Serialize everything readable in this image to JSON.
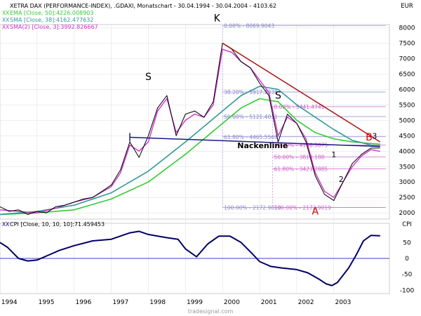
{
  "header": {
    "main_title": "XETRA DAX (PERFORMANCE-INDEX), .GDAXI, Monatschart - 30.04.1994 - 30.04.2004 - 4103.62",
    "legend_ema": "EMA [Close, 50]:4226.008903",
    "legend_sma38": "SMA [Close, 38]:4162.477632",
    "legend_sma2": "SMA(2) [Close, 3]:3992.826667",
    "currency": "EUR",
    "cpi_title": "CPI [Close, 10, 10, 10]:71.459453",
    "cpi_label": "CPI",
    "footer": "tradesignal.com"
  },
  "colors": {
    "price": "#000000",
    "ema": "#33cc33",
    "sma38": "#339999",
    "sma2": "#cc33cc",
    "neckline": "#1a1a8a",
    "trendline": "#aa1111",
    "fib_main": "#8888cc",
    "fib_secondary": "#cc66cc",
    "cpi": "#000066",
    "zero_line": "#0000aa",
    "grid": "#dddddd",
    "label_red": "#cc0000"
  },
  "chart_data": {
    "type": "line",
    "title": "XETRA DAX (PERFORMANCE-INDEX), .GDAXI, Monatschart - 30.04.1994 - 30.04.2004 - 4103.62",
    "ylabel": "EUR",
    "x_tick_labels": [
      "1994",
      "1995",
      "1996",
      "1997",
      "1998",
      "1999",
      "2000",
      "2001",
      "2002",
      "2003"
    ],
    "y_ticks": [
      2000,
      2500,
      3000,
      3500,
      4000,
      4500,
      5000,
      5500,
      6000,
      6500,
      7000,
      7500,
      8000
    ],
    "ylim": [
      1800,
      8100
    ],
    "x_range": [
      1994.0,
      2004.5
    ],
    "series": [
      {
        "name": "XETRA DAX",
        "points": [
          [
            1994.0,
            2200
          ],
          [
            1994.25,
            2050
          ],
          [
            1994.5,
            2100
          ],
          [
            1994.75,
            1950
          ],
          [
            1995.0,
            2050
          ],
          [
            1995.25,
            2000
          ],
          [
            1995.5,
            2200
          ],
          [
            1995.75,
            2250
          ],
          [
            1996.0,
            2350
          ],
          [
            1996.25,
            2450
          ],
          [
            1996.5,
            2500
          ],
          [
            1996.75,
            2700
          ],
          [
            1997.0,
            2900
          ],
          [
            1997.25,
            3400
          ],
          [
            1997.5,
            4300
          ],
          [
            1997.75,
            3800
          ],
          [
            1998.0,
            4500
          ],
          [
            1998.25,
            5400
          ],
          [
            1998.5,
            5800
          ],
          [
            1998.75,
            4500
          ],
          [
            1999.0,
            5200
          ],
          [
            1999.25,
            5300
          ],
          [
            1999.5,
            5100
          ],
          [
            1999.75,
            5600
          ],
          [
            2000.0,
            7500
          ],
          [
            2000.25,
            7300
          ],
          [
            2000.5,
            6900
          ],
          [
            2000.75,
            6700
          ],
          [
            2001.0,
            6200
          ],
          [
            2001.25,
            5800
          ],
          [
            2001.5,
            4300
          ],
          [
            2001.75,
            5200
          ],
          [
            2002.0,
            4900
          ],
          [
            2002.25,
            4300
          ],
          [
            2002.5,
            3200
          ],
          [
            2002.75,
            2600
          ],
          [
            2003.0,
            2400
          ],
          [
            2003.25,
            3000
          ],
          [
            2003.5,
            3600
          ],
          [
            2003.75,
            3900
          ],
          [
            2004.0,
            4100
          ],
          [
            2004.25,
            4103
          ]
        ]
      },
      {
        "name": "EMA [Close, 50]",
        "points": [
          [
            1994.0,
            1950
          ],
          [
            1995.0,
            2000
          ],
          [
            1996.0,
            2100
          ],
          [
            1997.0,
            2450
          ],
          [
            1998.0,
            3000
          ],
          [
            1999.0,
            3900
          ],
          [
            2000.0,
            4900
          ],
          [
            2000.5,
            5400
          ],
          [
            2001.0,
            5700
          ],
          [
            2001.5,
            5600
          ],
          [
            2002.0,
            5000
          ],
          [
            2002.5,
            4600
          ],
          [
            2003.0,
            4400
          ],
          [
            2003.5,
            4300
          ],
          [
            2004.0,
            4250
          ],
          [
            2004.25,
            4226
          ]
        ]
      },
      {
        "name": "SMA [Close, 38]",
        "points": [
          [
            1994.0,
            1950
          ],
          [
            1995.0,
            2050
          ],
          [
            1996.0,
            2250
          ],
          [
            1997.0,
            2650
          ],
          [
            1998.0,
            3350
          ],
          [
            1999.0,
            4300
          ],
          [
            2000.0,
            5300
          ],
          [
            2000.5,
            5800
          ],
          [
            2001.0,
            6100
          ],
          [
            2001.5,
            6000
          ],
          [
            2002.0,
            5500
          ],
          [
            2002.5,
            5100
          ],
          [
            2003.0,
            4700
          ],
          [
            2003.5,
            4350
          ],
          [
            2004.0,
            4200
          ],
          [
            2004.25,
            4162
          ]
        ]
      },
      {
        "name": "SMA(2) [Close, 3]",
        "points": [
          [
            1994.0,
            2100
          ],
          [
            1994.5,
            2050
          ],
          [
            1995.0,
            2000
          ],
          [
            1995.5,
            2150
          ],
          [
            1996.0,
            2350
          ],
          [
            1996.5,
            2500
          ],
          [
            1997.0,
            2850
          ],
          [
            1997.25,
            3300
          ],
          [
            1997.5,
            4200
          ],
          [
            1997.75,
            4000
          ],
          [
            1998.0,
            4300
          ],
          [
            1998.25,
            5300
          ],
          [
            1998.5,
            5700
          ],
          [
            1998.75,
            4600
          ],
          [
            1999.0,
            5000
          ],
          [
            1999.25,
            5200
          ],
          [
            1999.5,
            5100
          ],
          [
            1999.75,
            5500
          ],
          [
            2000.0,
            7300
          ],
          [
            2000.25,
            7200
          ],
          [
            2000.5,
            6900
          ],
          [
            2000.75,
            6700
          ],
          [
            2001.0,
            6300
          ],
          [
            2001.25,
            5900
          ],
          [
            2001.5,
            4500
          ],
          [
            2001.75,
            5100
          ],
          [
            2002.0,
            4900
          ],
          [
            2002.25,
            4400
          ],
          [
            2002.5,
            3300
          ],
          [
            2002.75,
            2700
          ],
          [
            2003.0,
            2500
          ],
          [
            2003.25,
            3000
          ],
          [
            2003.5,
            3500
          ],
          [
            2003.75,
            3850
          ],
          [
            2004.0,
            4050
          ],
          [
            2004.25,
            3993
          ]
        ]
      }
    ],
    "neckline": [
      [
        1997.5,
        4450
      ],
      [
        2004.25,
        4150
      ]
    ],
    "trendline": [
      [
        2000.0,
        7500
      ],
      [
        2004.25,
        4300
      ]
    ],
    "fib_left": {
      "x_start": 2000.0,
      "x_end": 2004.4,
      "levels": [
        {
          "label": "0.00% - 8069.9043",
          "value": 8070
        },
        {
          "label": "38.20% - 5917.2338",
          "value": 5917
        },
        {
          "label": "50.00% - 5121.4031",
          "value": 5121
        },
        {
          "label": "61.80% - 4465.5569",
          "value": 4466
        },
        {
          "label": "100.00% - 2172.9019",
          "value": 2173
        }
      ]
    },
    "fib_right": {
      "x_start": 2001.35,
      "x_end": 2004.4,
      "levels": [
        {
          "label": "0.00% - 5441.4741",
          "value": 5441
        },
        {
          "label": "38.20% - 4196.5875",
          "value": 4197
        },
        {
          "label": "50.00% - 3810.188",
          "value": 3810
        },
        {
          "label": "61.80% - 3423.7885",
          "value": 3424
        },
        {
          "label": "100.00% - 2172.9019",
          "value": 2173
        }
      ]
    },
    "annotations": [
      {
        "text": "S",
        "x": 1998.0,
        "y": 6300,
        "color": "#000000"
      },
      {
        "text": "K",
        "x": 1999.85,
        "y": 8200,
        "color": "#000000"
      },
      {
        "text": "S",
        "x": 2001.5,
        "y": 5700,
        "color": "#000000"
      },
      {
        "text": "Nackenlinie",
        "x": 2000.4,
        "y": 4100,
        "color": "#000000"
      },
      {
        "text": "B",
        "x": 2003.95,
        "y": 4350,
        "color": "#cc0000"
      },
      {
        "text": "A",
        "x": 2002.5,
        "y": 1950,
        "color": "#cc0000"
      },
      {
        "text": "1",
        "x": 2003.0,
        "y": 3800,
        "color": "#000000"
      },
      {
        "text": "2",
        "x": 2003.2,
        "y": 3000,
        "color": "#000000"
      },
      {
        "text": "3",
        "x": 2004.1,
        "y": 4400,
        "color": "#000000"
      }
    ],
    "cpi": {
      "ylim": [
        -110,
        110
      ],
      "y_ticks": [
        50,
        0,
        -50,
        -100
      ],
      "points": [
        [
          1994.0,
          50
        ],
        [
          1994.2,
          35
        ],
        [
          1994.5,
          0
        ],
        [
          1994.75,
          -8
        ],
        [
          1995.0,
          -5
        ],
        [
          1995.3,
          10
        ],
        [
          1995.6,
          25
        ],
        [
          1996.0,
          40
        ],
        [
          1996.5,
          55
        ],
        [
          1997.0,
          60
        ],
        [
          1997.5,
          80
        ],
        [
          1997.75,
          85
        ],
        [
          1998.0,
          75
        ],
        [
          1998.5,
          65
        ],
        [
          1998.8,
          60
        ],
        [
          1999.0,
          30
        ],
        [
          1999.3,
          5
        ],
        [
          1999.6,
          45
        ],
        [
          1999.9,
          70
        ],
        [
          2000.2,
          70
        ],
        [
          2000.5,
          50
        ],
        [
          2000.8,
          15
        ],
        [
          2001.0,
          -10
        ],
        [
          2001.3,
          -25
        ],
        [
          2001.6,
          -30
        ],
        [
          2002.0,
          -35
        ],
        [
          2002.3,
          -45
        ],
        [
          2002.6,
          -65
        ],
        [
          2002.8,
          -80
        ],
        [
          2002.95,
          -85
        ],
        [
          2003.1,
          -75
        ],
        [
          2003.4,
          -30
        ],
        [
          2003.6,
          10
        ],
        [
          2003.8,
          55
        ],
        [
          2004.0,
          72
        ],
        [
          2004.25,
          71
        ]
      ]
    }
  }
}
